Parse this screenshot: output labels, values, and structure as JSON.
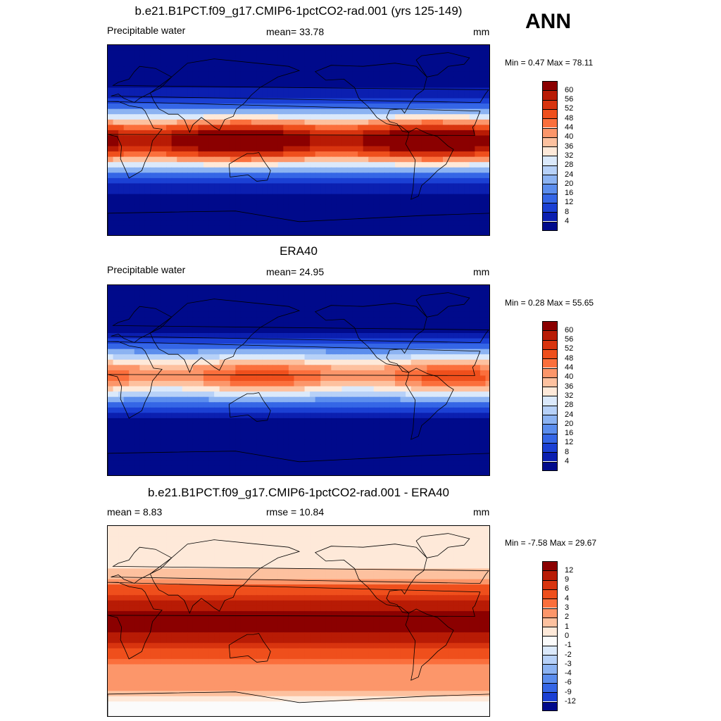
{
  "page": {
    "season": "ANN"
  },
  "panels": [
    {
      "title": "b.e21.B1PCT.f09_g17.CMIP6-1pctCO2-rad.001 (yrs 125-149)",
      "left_label": "Precipitable water",
      "center_label": "mean=  33.78",
      "right_label": "mm",
      "minmax": "Min =   0.47 Max =  78.11",
      "field": "model"
    },
    {
      "title": "ERA40",
      "left_label": "Precipitable water",
      "center_label": "mean=  24.95",
      "right_label": "mm",
      "minmax": "Min =   0.28 Max =  55.65",
      "field": "obs"
    },
    {
      "title": "b.e21.B1PCT.f09_g17.CMIP6-1pctCO2-rad.001 - ERA40",
      "left_label": "mean =   8.83",
      "center_label": "rmse =  10.84",
      "right_label": "mm",
      "minmax": "Min =  -7.58 Max =  29.67",
      "field": "diff"
    }
  ],
  "colorbars": {
    "abs": {
      "labels": [
        "60",
        "56",
        "52",
        "48",
        "44",
        "40",
        "36",
        "32",
        "28",
        "24",
        "20",
        "16",
        "12",
        "8",
        "4"
      ],
      "colors": [
        "#8b0000",
        "#b81b05",
        "#d8340f",
        "#ef4f1c",
        "#fb6f3c",
        "#fc966a",
        "#fdc19f",
        "#fee9d9",
        "#dbe9fb",
        "#b7d1f8",
        "#8cb3f2",
        "#5b8ded",
        "#3566e6",
        "#1b40d4",
        "#0b1fb0",
        "#000a8b"
      ]
    },
    "diff": {
      "labels": [
        "12",
        "9",
        "6",
        "4",
        "3",
        "2",
        "1",
        "0",
        "-1",
        "-2",
        "-3",
        "-4",
        "-6",
        "-9",
        "-12"
      ],
      "colors": [
        "#8b0000",
        "#b81b05",
        "#d8340f",
        "#ef4f1c",
        "#fb6f3c",
        "#fc966a",
        "#fdc19f",
        "#fee9d9",
        "#fbfbfb",
        "#dbe9fb",
        "#b7d1f8",
        "#8cb3f2",
        "#5b8ded",
        "#3566e6",
        "#1b40d4",
        "#000a8b"
      ]
    }
  }
}
